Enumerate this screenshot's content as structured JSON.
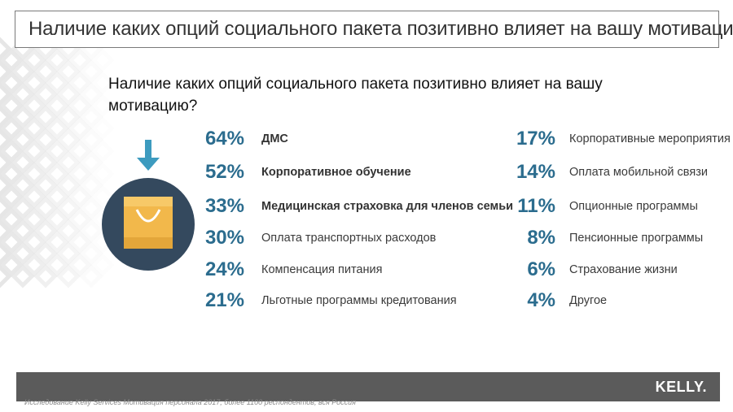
{
  "slide": {
    "title": "Наличие каких опций социального пакета позитивно влияет на вашу мотивацию?",
    "question": "Наличие каких опций социального пакета позитивно влияет на вашу мотивацию?",
    "source": "Исследование Kelly Services Мотивация персонала 2017, более 1100 респондентов, вся Россия",
    "logo": "KELLY."
  },
  "colors": {
    "percent": "#2b6c8e",
    "circle": "#34495e",
    "bag": "#f2b84b",
    "arrow": "#3d9bbf",
    "footer": "#5b5b5b"
  },
  "icon": "shopping-bag-icon",
  "chart_data": {
    "type": "table",
    "unit": "%",
    "columns": [
      {
        "items": [
          {
            "percent": "64%",
            "value": 64,
            "label": "ДМС",
            "bold": true
          },
          {
            "percent": "52%",
            "value": 52,
            "label": "Корпоративное обучение",
            "bold": true
          },
          {
            "percent": "33%",
            "value": 33,
            "label": "Медицинская страховка для членов семьи",
            "bold": true
          },
          {
            "percent": "30%",
            "value": 30,
            "label": "Оплата транспортных расходов",
            "bold": false
          },
          {
            "percent": "24%",
            "value": 24,
            "label": "Компенсация питания",
            "bold": false
          },
          {
            "percent": "21%",
            "value": 21,
            "label": "Льготные программы кредитования",
            "bold": false
          }
        ]
      },
      {
        "items": [
          {
            "percent": "17%",
            "value": 17,
            "label": "Корпоративные мероприятия",
            "bold": false
          },
          {
            "percent": "14%",
            "value": 14,
            "label": "Оплата мобильной связи",
            "bold": false
          },
          {
            "percent": "11%",
            "value": 11,
            "label": "Опционные программы",
            "bold": false
          },
          {
            "percent": "8%",
            "value": 8,
            "label": "Пенсионные программы",
            "bold": false
          },
          {
            "percent": "6%",
            "value": 6,
            "label": "Страхование жизни",
            "bold": false
          },
          {
            "percent": "4%",
            "value": 4,
            "label": "Другое",
            "bold": false
          }
        ]
      }
    ]
  }
}
